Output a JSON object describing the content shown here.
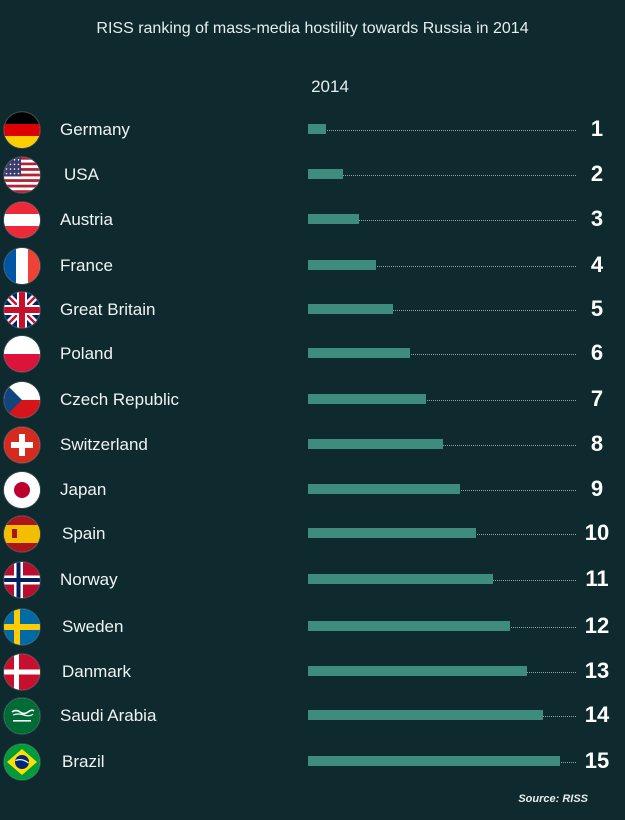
{
  "title": "RISS ranking of mass-media hostility towards Russia in 2014",
  "year_label": "2014",
  "source": "Source: RISS",
  "colors": {
    "background": "#0f2a2f",
    "bar": "#3d8c7e"
  },
  "chart_data": {
    "type": "bar",
    "orientation": "horizontal",
    "title": "RISS ranking of mass-media hostility towards Russia in 2014",
    "column_label": "2014",
    "categories": [
      "Germany",
      "USA",
      "Austria",
      "France",
      "Great Britain",
      "Poland",
      "Czech Republic",
      "Switzerland",
      "Japan",
      "Spain",
      "Norway",
      "Sweden",
      "Danmark",
      "Saudi Arabia",
      "Brazil"
    ],
    "values": [
      1,
      2,
      3,
      4,
      5,
      6,
      7,
      8,
      9,
      10,
      11,
      12,
      13,
      14,
      15
    ],
    "rank_labels": [
      "1",
      "2",
      "3",
      "4",
      "5",
      "6",
      "7",
      "8",
      "9",
      "10",
      "11",
      "12",
      "13",
      "14",
      "15"
    ],
    "flags": [
      "germany-flag-icon",
      "usa-flag-icon",
      "austria-flag-icon",
      "france-flag-icon",
      "great-britain-flag-icon",
      "poland-flag-icon",
      "czech-republic-flag-icon",
      "switzerland-flag-icon",
      "japan-flag-icon",
      "spain-flag-icon",
      "norway-flag-icon",
      "sweden-flag-icon",
      "danmark-flag-icon",
      "saudi-arabia-flag-icon",
      "brazil-flag-icon"
    ],
    "xlim": [
      0,
      15
    ],
    "grid": false,
    "legend": "none"
  }
}
